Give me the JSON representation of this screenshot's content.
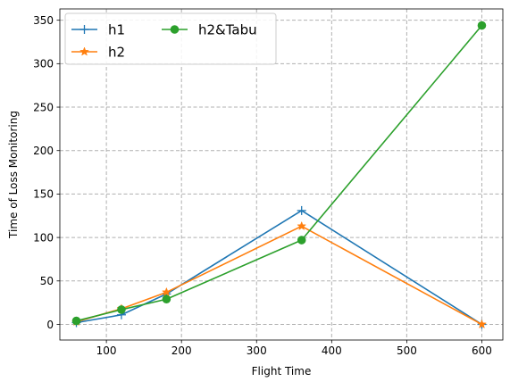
{
  "chart_data": {
    "type": "line",
    "title": "",
    "xlabel": "Flight Time",
    "ylabel": "Time of Loss Monitoring",
    "xlim": [
      38,
      628
    ],
    "ylim": [
      -18,
      363
    ],
    "x_ticks": [
      100,
      200,
      300,
      400,
      500,
      600
    ],
    "y_ticks": [
      0,
      50,
      100,
      150,
      200,
      250,
      300,
      350
    ],
    "grid": true,
    "grid_style": "dashed",
    "legend": {
      "placement": "top-left",
      "columns": 2
    },
    "x": [
      60,
      120,
      180,
      360,
      600
    ],
    "series": [
      {
        "name": "h1",
        "values": [
          2,
          11,
          35,
          131,
          0
        ],
        "color": "#1f77b4",
        "marker": "plus"
      },
      {
        "name": "h2",
        "values": [
          3,
          18,
          37,
          113,
          0
        ],
        "color": "#ff7f0e",
        "marker": "star"
      },
      {
        "name": "h2&Tabu",
        "values": [
          4,
          17,
          29,
          97,
          344
        ],
        "color": "#2ca02c",
        "marker": "circle"
      }
    ]
  }
}
